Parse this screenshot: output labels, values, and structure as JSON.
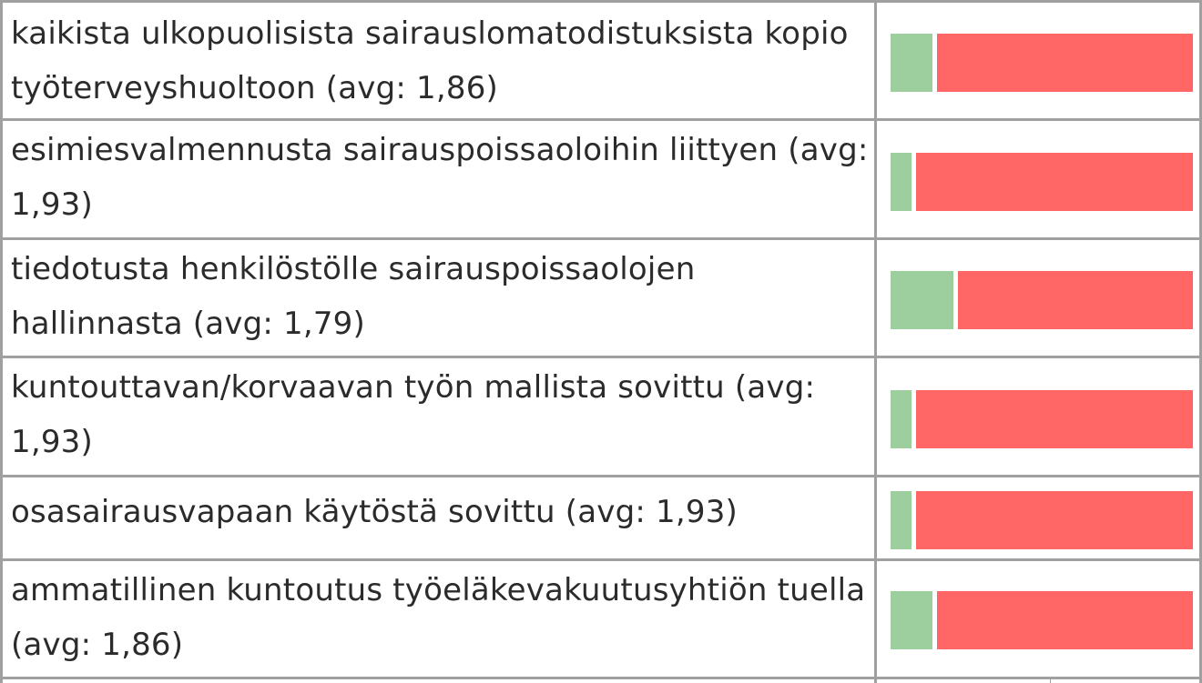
{
  "chart_data": {
    "type": "bar",
    "orientation": "horizontal",
    "stacked": true,
    "normalized": true,
    "colors": {
      "yes": "#9dcf9e",
      "no": "#ff6666"
    },
    "rows": [
      {
        "label": "kaikista ulkopuolisista sairauslomatodistuksista kopio työterveyshuoltoon (avg: 1,86)",
        "avg": 1.86,
        "yes_share": 0.14,
        "no_share": 0.86
      },
      {
        "label": "esimiesvalmennusta sairauspoissaoloihin liittyen (avg: 1,93)",
        "avg": 1.93,
        "yes_share": 0.07,
        "no_share": 0.93
      },
      {
        "label": "tiedotusta henkilöstölle sairauspoissaolojen hallinnasta (avg: 1,79)",
        "avg": 1.79,
        "yes_share": 0.21,
        "no_share": 0.79
      },
      {
        "label": "kuntouttavan/korvaavan työn mallista sovittu (avg: 1,93)",
        "avg": 1.93,
        "yes_share": 0.07,
        "no_share": 0.93
      },
      {
        "label": "osasairausvapaan käytöstä sovittu (avg: 1,93)",
        "avg": 1.93,
        "yes_share": 0.07,
        "no_share": 0.93
      },
      {
        "label": "ammatillinen kuntoutus työeläkevakuutusyhtiön tuella (avg: 1,86)",
        "avg": 1.86,
        "yes_share": 0.14,
        "no_share": 0.86
      }
    ]
  }
}
